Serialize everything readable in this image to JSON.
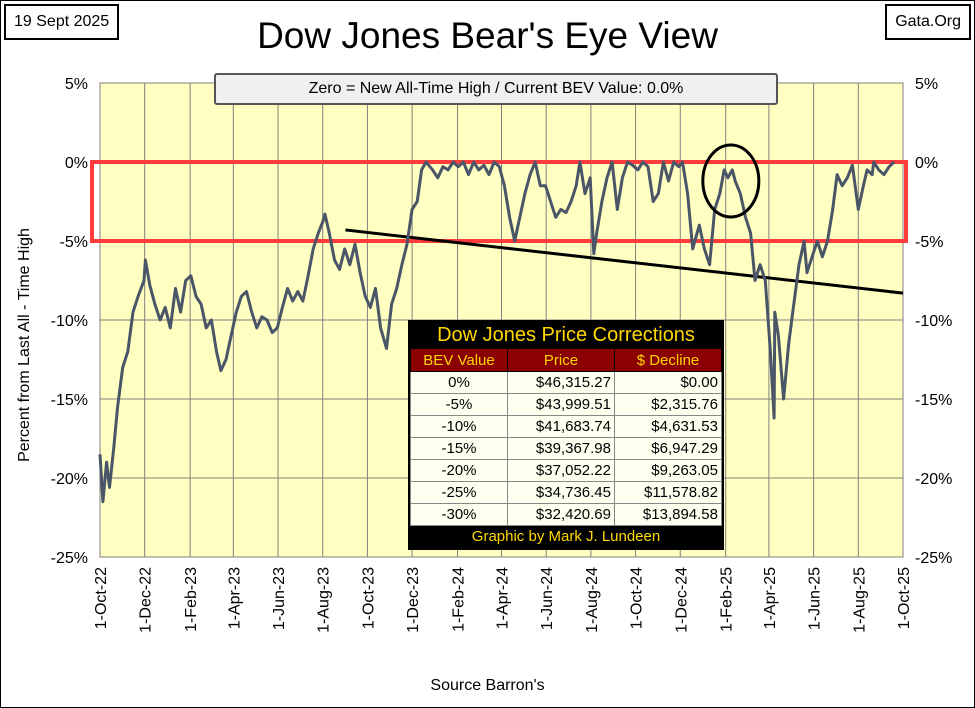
{
  "header": {
    "date": "19 Sept 2025",
    "site": "Gata.Org",
    "title": "Dow Jones Bear's Eye View"
  },
  "colors": {
    "plot_bg": "#ffffc2",
    "series": "#4a5568",
    "band_outline": "#ff3b3b",
    "trendline": "#000000"
  },
  "chart_data": {
    "type": "line",
    "subtitle": "Zero = New All-Time High / Current BEV Value:  0.0%",
    "xlabel": "Source Barron's",
    "ylabel": "Percent  from  Last  All - Time  High",
    "xlim": [
      "2022-10-01",
      "2025-10-01"
    ],
    "ylim": [
      -25,
      5
    ],
    "grid": true,
    "y_ticks": [
      "5%",
      "0%",
      "-5%",
      "-10%",
      "-15%",
      "-20%",
      "-25%"
    ],
    "y_tick_values": [
      5,
      0,
      -5,
      -10,
      -15,
      -20,
      -25
    ],
    "x_ticks": [
      "1-Oct-22",
      "1-Dec-22",
      "1-Feb-23",
      "1-Apr-23",
      "1-Jun-23",
      "1-Aug-23",
      "1-Oct-23",
      "1-Dec-23",
      "1-Feb-24",
      "1-Apr-24",
      "1-Jun-24",
      "1-Aug-24",
      "1-Oct-24",
      "1-Dec-24",
      "1-Feb-25",
      "1-Apr-25",
      "1-Jun-25",
      "1-Aug-25",
      "1-Oct-25"
    ],
    "x_tick_dates": [
      "2022-10-01",
      "2022-12-01",
      "2023-02-01",
      "2023-04-01",
      "2023-06-01",
      "2023-08-01",
      "2023-10-01",
      "2023-12-01",
      "2024-02-01",
      "2024-04-01",
      "2024-06-01",
      "2024-08-01",
      "2024-10-01",
      "2024-12-01",
      "2025-02-01",
      "2025-04-01",
      "2025-06-01",
      "2025-08-01",
      "2025-10-01"
    ],
    "series": [
      {
        "values": [
          [
            "2022-10-01",
            -18.5
          ],
          [
            "2022-10-05",
            -21.5
          ],
          [
            "2022-10-10",
            -19.0
          ],
          [
            "2022-10-14",
            -20.6
          ],
          [
            "2022-10-20",
            -18.0
          ],
          [
            "2022-10-25",
            -15.5
          ],
          [
            "2022-11-01",
            -13.0
          ],
          [
            "2022-11-08",
            -12.0
          ],
          [
            "2022-11-15",
            -9.5
          ],
          [
            "2022-11-22",
            -8.5
          ],
          [
            "2022-11-30",
            -7.5
          ],
          [
            "2022-12-02",
            -6.2
          ],
          [
            "2022-12-08",
            -7.8
          ],
          [
            "2022-12-15",
            -9.0
          ],
          [
            "2022-12-22",
            -10.0
          ],
          [
            "2022-12-29",
            -9.2
          ],
          [
            "2023-01-05",
            -10.5
          ],
          [
            "2023-01-12",
            -8.0
          ],
          [
            "2023-01-19",
            -9.5
          ],
          [
            "2023-01-26",
            -7.5
          ],
          [
            "2023-02-02",
            -7.2
          ],
          [
            "2023-02-09",
            -8.5
          ],
          [
            "2023-02-16",
            -9.0
          ],
          [
            "2023-02-23",
            -10.5
          ],
          [
            "2023-03-02",
            -10.0
          ],
          [
            "2023-03-09",
            -12.0
          ],
          [
            "2023-03-15",
            -13.2
          ],
          [
            "2023-03-22",
            -12.5
          ],
          [
            "2023-03-29",
            -11.0
          ],
          [
            "2023-04-05",
            -9.5
          ],
          [
            "2023-04-12",
            -8.5
          ],
          [
            "2023-04-19",
            -8.2
          ],
          [
            "2023-04-26",
            -9.5
          ],
          [
            "2023-05-03",
            -10.5
          ],
          [
            "2023-05-10",
            -9.8
          ],
          [
            "2023-05-17",
            -10.0
          ],
          [
            "2023-05-24",
            -10.8
          ],
          [
            "2023-05-31",
            -10.5
          ],
          [
            "2023-06-07",
            -9.2
          ],
          [
            "2023-06-14",
            -8.0
          ],
          [
            "2023-06-21",
            -8.8
          ],
          [
            "2023-06-28",
            -8.2
          ],
          [
            "2023-07-05",
            -8.8
          ],
          [
            "2023-07-12",
            -7.2
          ],
          [
            "2023-07-19",
            -5.5
          ],
          [
            "2023-07-26",
            -4.5
          ],
          [
            "2023-08-01",
            -3.8
          ],
          [
            "2023-08-04",
            -3.3
          ],
          [
            "2023-08-10",
            -4.5
          ],
          [
            "2023-08-17",
            -6.2
          ],
          [
            "2023-08-24",
            -6.8
          ],
          [
            "2023-08-31",
            -5.5
          ],
          [
            "2023-09-07",
            -6.5
          ],
          [
            "2023-09-14",
            -5.2
          ],
          [
            "2023-09-21",
            -7.0
          ],
          [
            "2023-09-28",
            -8.5
          ],
          [
            "2023-10-05",
            -9.2
          ],
          [
            "2023-10-12",
            -8.0
          ],
          [
            "2023-10-19",
            -10.5
          ],
          [
            "2023-10-27",
            -11.8
          ],
          [
            "2023-11-03",
            -9.0
          ],
          [
            "2023-11-10",
            -8.0
          ],
          [
            "2023-11-17",
            -6.5
          ],
          [
            "2023-11-24",
            -5.2
          ],
          [
            "2023-12-01",
            -3.0
          ],
          [
            "2023-12-08",
            -2.5
          ],
          [
            "2023-12-14",
            -0.5
          ],
          [
            "2023-12-20",
            0.0
          ],
          [
            "2023-12-29",
            -0.5
          ],
          [
            "2024-01-05",
            -1.0
          ],
          [
            "2024-01-12",
            -0.3
          ],
          [
            "2024-01-19",
            -0.5
          ],
          [
            "2024-01-26",
            0.0
          ],
          [
            "2024-02-02",
            -0.3
          ],
          [
            "2024-02-09",
            0.0
          ],
          [
            "2024-02-16",
            -0.8
          ],
          [
            "2024-02-23",
            0.0
          ],
          [
            "2024-03-01",
            -0.5
          ],
          [
            "2024-03-08",
            -0.2
          ],
          [
            "2024-03-15",
            -0.8
          ],
          [
            "2024-03-22",
            0.0
          ],
          [
            "2024-03-29",
            -0.3
          ],
          [
            "2024-04-05",
            -1.5
          ],
          [
            "2024-04-12",
            -3.5
          ],
          [
            "2024-04-19",
            -5.0
          ],
          [
            "2024-04-26",
            -3.5
          ],
          [
            "2024-05-03",
            -2.0
          ],
          [
            "2024-05-10",
            -0.8
          ],
          [
            "2024-05-17",
            0.0
          ],
          [
            "2024-05-24",
            -1.5
          ],
          [
            "2024-05-31",
            -1.5
          ],
          [
            "2024-06-07",
            -2.5
          ],
          [
            "2024-06-14",
            -3.5
          ],
          [
            "2024-06-21",
            -3.0
          ],
          [
            "2024-06-28",
            -3.2
          ],
          [
            "2024-07-05",
            -2.5
          ],
          [
            "2024-07-12",
            -1.5
          ],
          [
            "2024-07-17",
            0.0
          ],
          [
            "2024-07-24",
            -2.0
          ],
          [
            "2024-07-31",
            -1.0
          ],
          [
            "2024-08-05",
            -5.8
          ],
          [
            "2024-08-09",
            -4.5
          ],
          [
            "2024-08-16",
            -2.5
          ],
          [
            "2024-08-23",
            -1.0
          ],
          [
            "2024-08-30",
            0.0
          ],
          [
            "2024-09-06",
            -3.0
          ],
          [
            "2024-09-13",
            -1.0
          ],
          [
            "2024-09-20",
            0.0
          ],
          [
            "2024-09-27",
            -0.2
          ],
          [
            "2024-10-04",
            -0.5
          ],
          [
            "2024-10-11",
            0.0
          ],
          [
            "2024-10-18",
            -0.3
          ],
          [
            "2024-10-25",
            -2.5
          ],
          [
            "2024-11-01",
            -2.0
          ],
          [
            "2024-11-08",
            0.0
          ],
          [
            "2024-11-15",
            -1.2
          ],
          [
            "2024-11-22",
            0.0
          ],
          [
            "2024-11-29",
            -0.3
          ],
          [
            "2024-12-04",
            0.0
          ],
          [
            "2024-12-11",
            -2.0
          ],
          [
            "2024-12-18",
            -5.5
          ],
          [
            "2024-12-27",
            -4.0
          ],
          [
            "2025-01-03",
            -5.5
          ],
          [
            "2025-01-10",
            -6.5
          ],
          [
            "2025-01-17",
            -3.0
          ],
          [
            "2025-01-24",
            -2.0
          ],
          [
            "2025-01-30",
            -0.5
          ],
          [
            "2025-02-04",
            -1.0
          ],
          [
            "2025-02-10",
            -0.5
          ],
          [
            "2025-02-14",
            -1.2
          ],
          [
            "2025-02-21",
            -2.0
          ],
          [
            "2025-02-28",
            -3.5
          ],
          [
            "2025-03-07",
            -4.5
          ],
          [
            "2025-03-13",
            -7.5
          ],
          [
            "2025-03-20",
            -6.5
          ],
          [
            "2025-03-27",
            -7.5
          ],
          [
            "2025-04-03",
            -12.0
          ],
          [
            "2025-04-08",
            -16.2
          ],
          [
            "2025-04-09",
            -9.5
          ],
          [
            "2025-04-14",
            -11.0
          ],
          [
            "2025-04-21",
            -15.0
          ],
          [
            "2025-04-28",
            -11.5
          ],
          [
            "2025-05-05",
            -9.0
          ],
          [
            "2025-05-12",
            -6.5
          ],
          [
            "2025-05-19",
            -5.0
          ],
          [
            "2025-05-23",
            -7.0
          ],
          [
            "2025-05-30",
            -6.0
          ],
          [
            "2025-06-06",
            -5.0
          ],
          [
            "2025-06-13",
            -6.0
          ],
          [
            "2025-06-20",
            -5.0
          ],
          [
            "2025-06-27",
            -3.0
          ],
          [
            "2025-07-03",
            -0.8
          ],
          [
            "2025-07-10",
            -1.5
          ],
          [
            "2025-07-17",
            -1.0
          ],
          [
            "2025-07-24",
            -0.2
          ],
          [
            "2025-08-01",
            -3.0
          ],
          [
            "2025-08-08",
            -1.5
          ],
          [
            "2025-08-13",
            -0.5
          ],
          [
            "2025-08-20",
            -0.8
          ],
          [
            "2025-08-22",
            0.0
          ],
          [
            "2025-08-29",
            -0.5
          ],
          [
            "2025-09-05",
            -0.8
          ],
          [
            "2025-09-12",
            -0.3
          ],
          [
            "2025-09-19",
            0.0
          ]
        ]
      }
    ],
    "trendline": [
      [
        "2023-09-01",
        -4.3
      ],
      [
        "2025-10-01",
        -8.3
      ]
    ],
    "band": [
      0,
      -5
    ]
  },
  "table": {
    "title": "Dow Jones Price Corrections",
    "headers": [
      "BEV Value",
      "Price",
      "$ Decline"
    ],
    "rows": [
      [
        "0%",
        "$46,315.27",
        "$0.00"
      ],
      [
        "-5%",
        "$43,999.51",
        "$2,315.76"
      ],
      [
        "-10%",
        "$41,683.74",
        "$4,631.53"
      ],
      [
        "-15%",
        "$39,367.98",
        "$6,947.29"
      ],
      [
        "-20%",
        "$37,052.22",
        "$9,263.05"
      ],
      [
        "-25%",
        "$34,736.45",
        "$11,578.82"
      ],
      [
        "-30%",
        "$32,420.69",
        "$13,894.58"
      ]
    ],
    "credit": "Graphic by Mark J. Lundeen"
  }
}
